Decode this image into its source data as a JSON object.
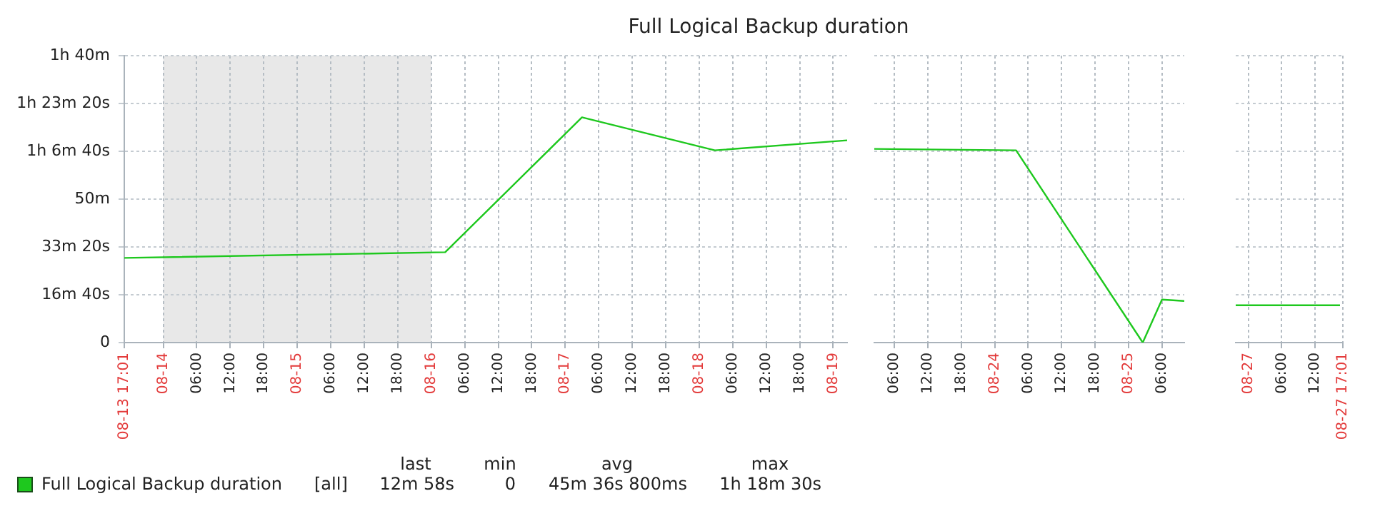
{
  "chart_data": [
    {
      "type": "line",
      "title": "Full Logical Backup duration",
      "legend": "bottom",
      "grid": true,
      "xlim": [
        "--08-13T17:01",
        "--08-19T02:30"
      ],
      "xticks": [
        {
          "value": "--08-13T17:01",
          "label": "08-13 17:01"
        },
        {
          "value": "--08-14",
          "label": "08-14"
        },
        {
          "value": "--08-14T06:00",
          "label": "06:00"
        },
        {
          "value": "--08-14T12:00",
          "label": "12:00"
        },
        {
          "value": "--08-14T18:00",
          "label": "18:00"
        },
        {
          "value": "--08-15",
          "label": "08-15"
        },
        {
          "value": "--08-15T06:00",
          "label": "06:00"
        },
        {
          "value": "--08-15T12:00",
          "label": "12:00"
        },
        {
          "value": "--08-15T18:00",
          "label": "18:00"
        },
        {
          "value": "--08-16",
          "label": "08-16"
        },
        {
          "value": "--08-16T06:00",
          "label": "06:00"
        },
        {
          "value": "--08-16T12:00",
          "label": "12:00"
        },
        {
          "value": "--08-16T18:00",
          "label": "18:00"
        },
        {
          "value": "--08-17",
          "label": "08-17"
        },
        {
          "value": "--08-17T06:00",
          "label": "06:00"
        },
        {
          "value": "--08-17T12:00",
          "label": "12:00"
        },
        {
          "value": "--08-17T18:00",
          "label": "18:00"
        },
        {
          "value": "--08-18",
          "label": "08-18"
        },
        {
          "value": "--08-18T06:00",
          "label": "06:00"
        },
        {
          "value": "--08-18T12:00",
          "label": "12:00"
        },
        {
          "value": "--08-18T18:00",
          "label": "18:00"
        },
        {
          "value": "--08-19",
          "label": "08-19"
        }
      ],
      "ylim": [
        0,
        100
      ],
      "yticks": [
        {
          "value": 0,
          "label": "0"
        },
        {
          "value": 16.67,
          "label": "16m 40s"
        },
        {
          "value": 33.33,
          "label": "33m 20s"
        },
        {
          "value": 50,
          "label": "50m"
        },
        {
          "value": 66.67,
          "label": "1h 6m 40s"
        },
        {
          "value": 83.33,
          "label": "1h 23m 20s"
        },
        {
          "value": 100,
          "label": "1h 40m"
        }
      ],
      "bands": [
        {
          "axis": "x",
          "from": "--08-14",
          "to": "--08-16",
          "color": "#e8e8e8"
        }
      ],
      "series": [
        {
          "name": "Full Logical Backup duration",
          "color": "#1ec81e",
          "x": [
            "--08-13T17:01",
            "--08-16T02:30",
            "--08-17T03:00",
            "--08-18T02:48",
            "--08-19T02:30"
          ],
          "values": [
            29.5,
            31.5,
            78.5,
            67,
            70.5
          ]
        }
      ],
      "annotations": [
        "[all]",
        "last",
        "min",
        "avg",
        "max",
        "12m 58s",
        "0",
        "45m 36s 800ms",
        "1h 18m 30s"
      ]
    },
    {
      "type": "line",
      "grid": true,
      "tick_labels": "x",
      "xlim": [
        "--08-23T02:24",
        "--08-25T10:00"
      ],
      "xticks": [
        {
          "value": "--08-23T06:00",
          "label": "06:00"
        },
        {
          "value": "--08-23T12:00",
          "label": "12:00"
        },
        {
          "value": "--08-23T18:00",
          "label": "18:00"
        },
        {
          "value": "--08-24",
          "label": "08-24"
        },
        {
          "value": "--08-24T06:00",
          "label": "06:00"
        },
        {
          "value": "--08-24T12:00",
          "label": "12:00"
        },
        {
          "value": "--08-24T18:00",
          "label": "18:00"
        },
        {
          "value": "--08-25",
          "label": "08-25"
        },
        {
          "value": "--08-25T06:00",
          "label": "06:00"
        }
      ],
      "ylim": [
        0,
        100
      ],
      "yticks": [
        {
          "value": 0,
          "label": null
        },
        {
          "value": 16.67,
          "label": null
        },
        {
          "value": 33.33,
          "label": null
        },
        {
          "value": 50,
          "label": null
        },
        {
          "value": 66.67,
          "label": null
        },
        {
          "value": 83.33,
          "label": null
        },
        {
          "value": 100,
          "label": null
        }
      ],
      "series": [
        {
          "color": "#1ec81e",
          "x": [
            "--08-23T02:24",
            "--08-24T03:50",
            "--08-25T02:33",
            "--08-25T06:00",
            "--08-25T10:00"
          ],
          "values": [
            67.5,
            67,
            0,
            15,
            14.5
          ]
        }
      ]
    },
    {
      "type": "line",
      "grid": true,
      "tick_labels": "x",
      "xlim": [
        "--08-26T21:42",
        "--08-27T17:01"
      ],
      "xticks": [
        {
          "value": "--08-27",
          "label": "08-27"
        },
        {
          "value": "--08-27T06:00",
          "label": "06:00"
        },
        {
          "value": "--08-27T12:00",
          "label": "12:00"
        },
        {
          "value": "--08-27T17:01",
          "label": "08-27 17:01"
        }
      ],
      "ylim": [
        0,
        100
      ],
      "yticks": [
        {
          "value": 0,
          "label": null
        },
        {
          "value": 16.67,
          "label": null
        },
        {
          "value": 33.33,
          "label": null
        },
        {
          "value": 50,
          "label": null
        },
        {
          "value": 66.67,
          "label": null
        },
        {
          "value": 83.33,
          "label": null
        },
        {
          "value": 100,
          "label": null
        }
      ],
      "series": [
        {
          "color": "#1ec81e",
          "x": [
            "--08-26T21:42",
            "--08-27T16:30"
          ],
          "values": [
            13,
            13
          ]
        }
      ]
    }
  ]
}
